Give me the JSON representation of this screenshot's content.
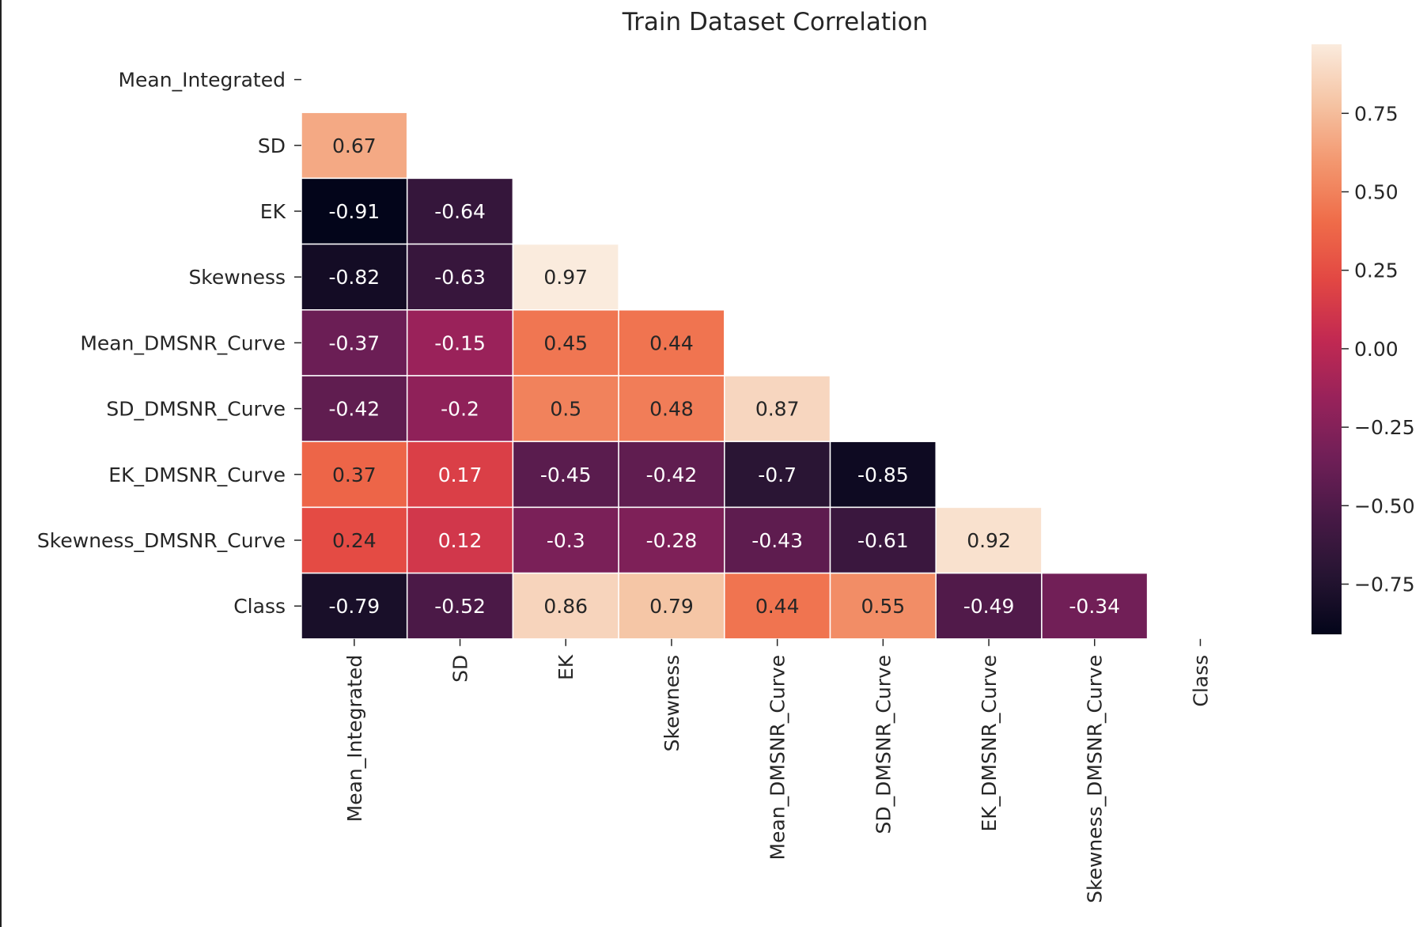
{
  "chart_data": {
    "type": "heatmap",
    "title": "Train Dataset Correlation",
    "row_labels": [
      "Mean_Integrated",
      "SD",
      "EK",
      "Skewness",
      "Mean_DMSNR_Curve",
      "SD_DMSNR_Curve",
      "EK_DMSNR_Curve",
      "Skewness_DMSNR_Curve",
      "Class"
    ],
    "col_labels": [
      "Mean_Integrated",
      "SD",
      "EK",
      "Skewness",
      "Mean_DMSNR_Curve",
      "SD_DMSNR_Curve",
      "EK_DMSNR_Curve",
      "Skewness_DMSNR_Curve",
      "Class"
    ],
    "mask": "upper triangle including diagonal",
    "values": [
      [
        null,
        null,
        null,
        null,
        null,
        null,
        null,
        null,
        null
      ],
      [
        0.67,
        null,
        null,
        null,
        null,
        null,
        null,
        null,
        null
      ],
      [
        -0.91,
        -0.64,
        null,
        null,
        null,
        null,
        null,
        null,
        null
      ],
      [
        -0.82,
        -0.63,
        0.97,
        null,
        null,
        null,
        null,
        null,
        null
      ],
      [
        -0.37,
        -0.15,
        0.45,
        0.44,
        null,
        null,
        null,
        null,
        null
      ],
      [
        -0.42,
        -0.2,
        0.5,
        0.48,
        0.87,
        null,
        null,
        null,
        null
      ],
      [
        0.37,
        0.17,
        -0.45,
        -0.42,
        -0.7,
        -0.85,
        null,
        null,
        null
      ],
      [
        0.24,
        0.12,
        -0.3,
        -0.28,
        -0.43,
        -0.61,
        0.92,
        null,
        null
      ],
      [
        -0.79,
        -0.52,
        0.86,
        0.79,
        0.44,
        0.55,
        -0.49,
        -0.34,
        null
      ]
    ],
    "annotations": [
      [],
      [
        "0.67"
      ],
      [
        "-0.91",
        "-0.64"
      ],
      [
        "-0.82",
        "-0.63",
        "0.97"
      ],
      [
        "-0.37",
        "-0.15",
        "0.45",
        "0.44"
      ],
      [
        "-0.42",
        "-0.2",
        "0.5",
        "0.48",
        "0.87"
      ],
      [
        "0.37",
        "0.17",
        "-0.45",
        "-0.42",
        "-0.7",
        "-0.85"
      ],
      [
        "0.24",
        "0.12",
        "-0.3",
        "-0.28",
        "-0.43",
        "-0.61",
        "0.92"
      ],
      [
        "-0.79",
        "-0.52",
        "0.86",
        "0.79",
        "0.44",
        "0.55",
        "-0.49",
        "-0.34"
      ]
    ],
    "colorbar": {
      "colormap": "rocket",
      "vmin": -0.91,
      "vmax": 0.97,
      "ticks": [
        0.75,
        0.5,
        0.25,
        0.0,
        -0.25,
        -0.5,
        -0.75
      ],
      "tick_labels": [
        "0.75",
        "0.50",
        "0.25",
        "0.00",
        "−0.25",
        "−0.50",
        "−0.75"
      ],
      "placement": "right"
    },
    "grid": false
  }
}
